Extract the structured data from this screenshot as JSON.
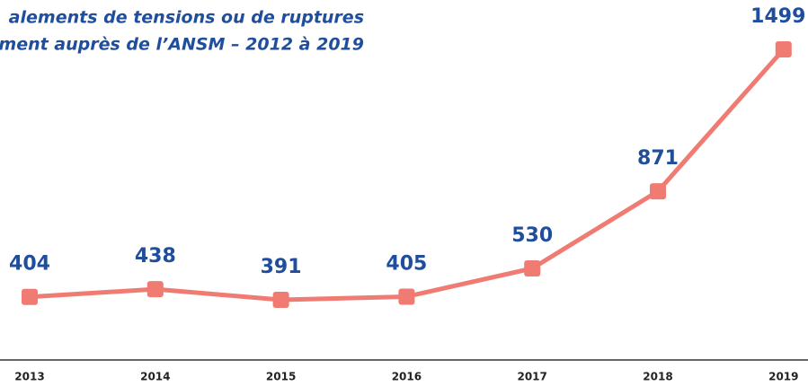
{
  "chart_data": {
    "type": "line",
    "title": [
      "alements de tensions ou de ruptures",
      "ment auprès de l’ANSM – 2012 à 2019"
    ],
    "categories": [
      "2013",
      "2014",
      "2015",
      "2016",
      "2017",
      "2018",
      "2019"
    ],
    "series": [
      {
        "color": "#f07b72",
        "values": [
          404,
          438,
          391,
          405,
          530,
          871,
          1499
        ]
      }
    ],
    "label_color": "#1f4e9c"
  }
}
